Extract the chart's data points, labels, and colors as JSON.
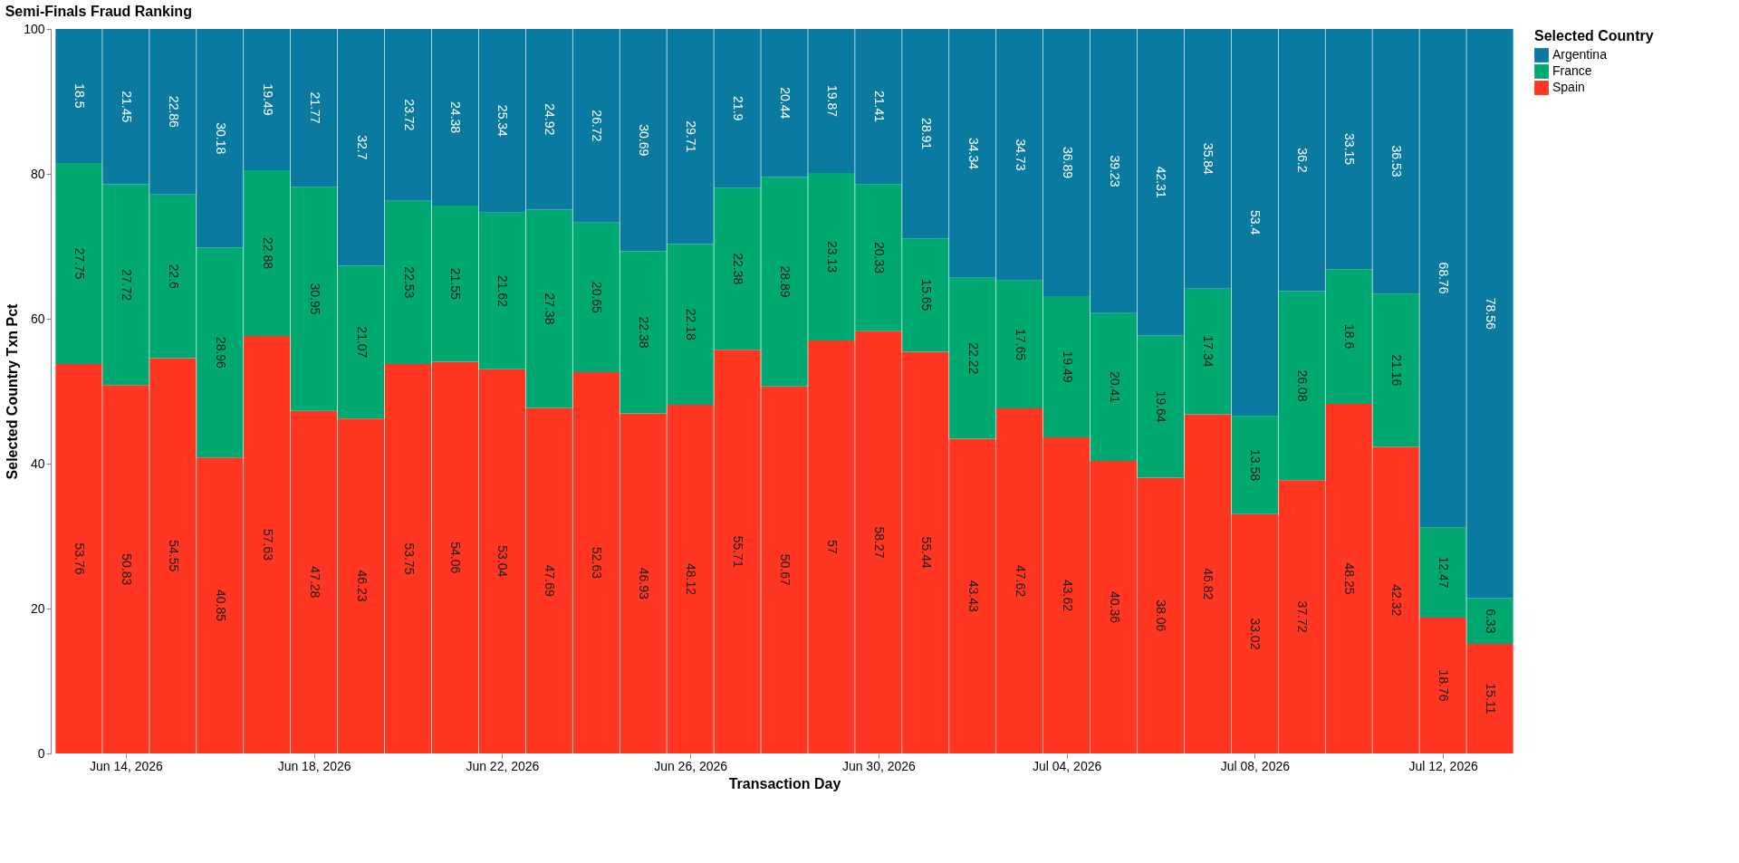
{
  "chart_data": {
    "type": "bar",
    "stacked": true,
    "title": "Semi-Finals Fraud Ranking",
    "xlabel": "Transaction Day",
    "ylabel": "Selected Country Txn Pct",
    "legend_title": "Selected Country",
    "legend": "top right",
    "grid": false,
    "data_labels": true,
    "x": [
      "2026-06-13",
      "2026-06-14",
      "2026-06-15",
      "2026-06-16",
      "2026-06-17",
      "2026-06-18",
      "2026-06-19",
      "2026-06-20",
      "2026-06-21",
      "2026-06-22",
      "2026-06-23",
      "2026-06-24",
      "2026-06-25",
      "2026-06-26",
      "2026-06-27",
      "2026-06-28",
      "2026-06-29",
      "2026-06-30",
      "2026-07-01",
      "2026-07-02",
      "2026-07-03",
      "2026-07-04",
      "2026-07-05",
      "2026-07-06",
      "2026-07-07",
      "2026-07-08",
      "2026-07-09",
      "2026-07-10",
      "2026-07-11",
      "2026-07-12",
      "2026-07-13"
    ],
    "xlim": [
      "2026-06-12T12:00",
      "2026-07-13T12:00"
    ],
    "xticks": [
      {
        "value": "2026-06-14",
        "label": "Jun 14, 2026"
      },
      {
        "value": "2026-06-18",
        "label": "Jun 18, 2026"
      },
      {
        "value": "2026-06-22",
        "label": "Jun 22, 2026"
      },
      {
        "value": "2026-06-26",
        "label": "Jun 26, 2026"
      },
      {
        "value": "2026-06-30",
        "label": "Jun 30, 2026"
      },
      {
        "value": "2026-07-04",
        "label": "Jul 04, 2026"
      },
      {
        "value": "2026-07-08",
        "label": "Jul 08, 2026"
      },
      {
        "value": "2026-07-12",
        "label": "Jul 12, 2026"
      }
    ],
    "ylim": [
      0,
      100
    ],
    "yticks": [
      0,
      20,
      40,
      60,
      80,
      100
    ],
    "series": [
      {
        "name": "Spain",
        "color": "#ff3621",
        "values": [
          53.76,
          50.83,
          54.55,
          40.85,
          57.63,
          47.28,
          46.23,
          53.75,
          54.06,
          53.04,
          47.69,
          52.63,
          46.93,
          48.12,
          55.71,
          50.67,
          57,
          58.27,
          55.44,
          43.43,
          47.62,
          43.62,
          40.36,
          38.06,
          46.82,
          33.02,
          37.72,
          48.25,
          42.32,
          18.76,
          15.11
        ]
      },
      {
        "name": "France",
        "color": "#00a972",
        "values": [
          27.75,
          27.72,
          22.6,
          28.96,
          22.88,
          30.95,
          21.07,
          22.53,
          21.55,
          21.62,
          27.38,
          20.65,
          22.38,
          22.18,
          22.38,
          28.89,
          23.13,
          20.33,
          15.65,
          22.22,
          17.65,
          19.49,
          20.41,
          19.64,
          17.34,
          13.58,
          26.08,
          18.6,
          21.16,
          12.47,
          6.33
        ]
      },
      {
        "name": "Argentina",
        "color": "#0b7aa0",
        "values": [
          18.5,
          21.45,
          22.86,
          30.18,
          19.49,
          21.77,
          32.7,
          23.72,
          24.38,
          25.34,
          24.92,
          26.72,
          30.69,
          29.71,
          21.9,
          20.44,
          19.87,
          21.41,
          28.91,
          34.34,
          34.73,
          36.89,
          39.23,
          42.31,
          35.84,
          53.4,
          36.2,
          33.15,
          36.53,
          68.76,
          78.56
        ]
      }
    ]
  }
}
